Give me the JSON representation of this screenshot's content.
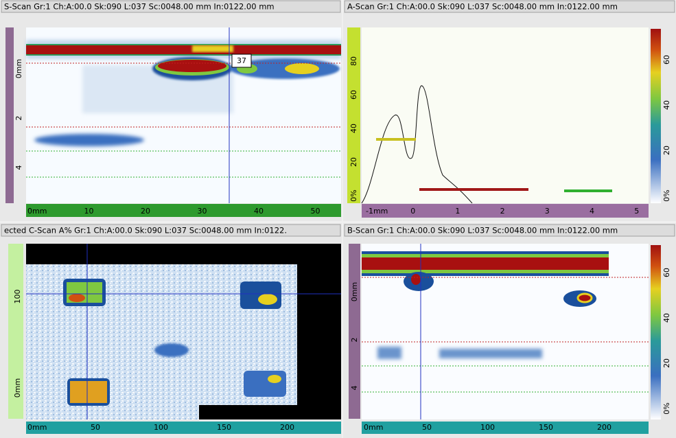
{
  "panels": [
    {
      "title": "S-Scan Gr:1 Ch:A:00.0 Sk:090 L:037 Sc:0048.00 mm In:0122.00 mm",
      "x_ruler": [
        "0mm",
        "10",
        "20",
        "30",
        "40",
        "50"
      ],
      "y_ruler": [
        "0mm",
        "2",
        "4"
      ],
      "cursor_label": "37"
    },
    {
      "title": "A-Scan Gr:1 Ch:A:00.0 Sk:090 L:037 Sc:0048.00 mm In:0122.00 mm",
      "x_ruler": [
        "-1mm",
        "0",
        "1",
        "2",
        "3",
        "4",
        "5"
      ],
      "y_ruler": [
        "0%",
        "20",
        "40",
        "60",
        "80"
      ],
      "color_scale": [
        "0%",
        "20",
        "40",
        "60"
      ]
    },
    {
      "title": "ected C-Scan A% Gr:1 Ch:A:00.0 Sk:090 L:037 Sc:0048.00 mm In:0122.",
      "x_ruler": [
        "0mm",
        "50",
        "100",
        "150",
        "200"
      ],
      "y_ruler": [
        "0mm",
        "100"
      ]
    },
    {
      "title": "B-Scan Gr:1 Ch:A:00.0 Sk:090 L:037 Sc:0048.00 mm In:0122.00 mm",
      "x_ruler": [
        "0mm",
        "50",
        "100",
        "150",
        "200"
      ],
      "y_ruler": [
        "0mm",
        "2",
        "4"
      ],
      "color_scale": [
        "0%",
        "20",
        "40",
        "60"
      ]
    }
  ]
}
